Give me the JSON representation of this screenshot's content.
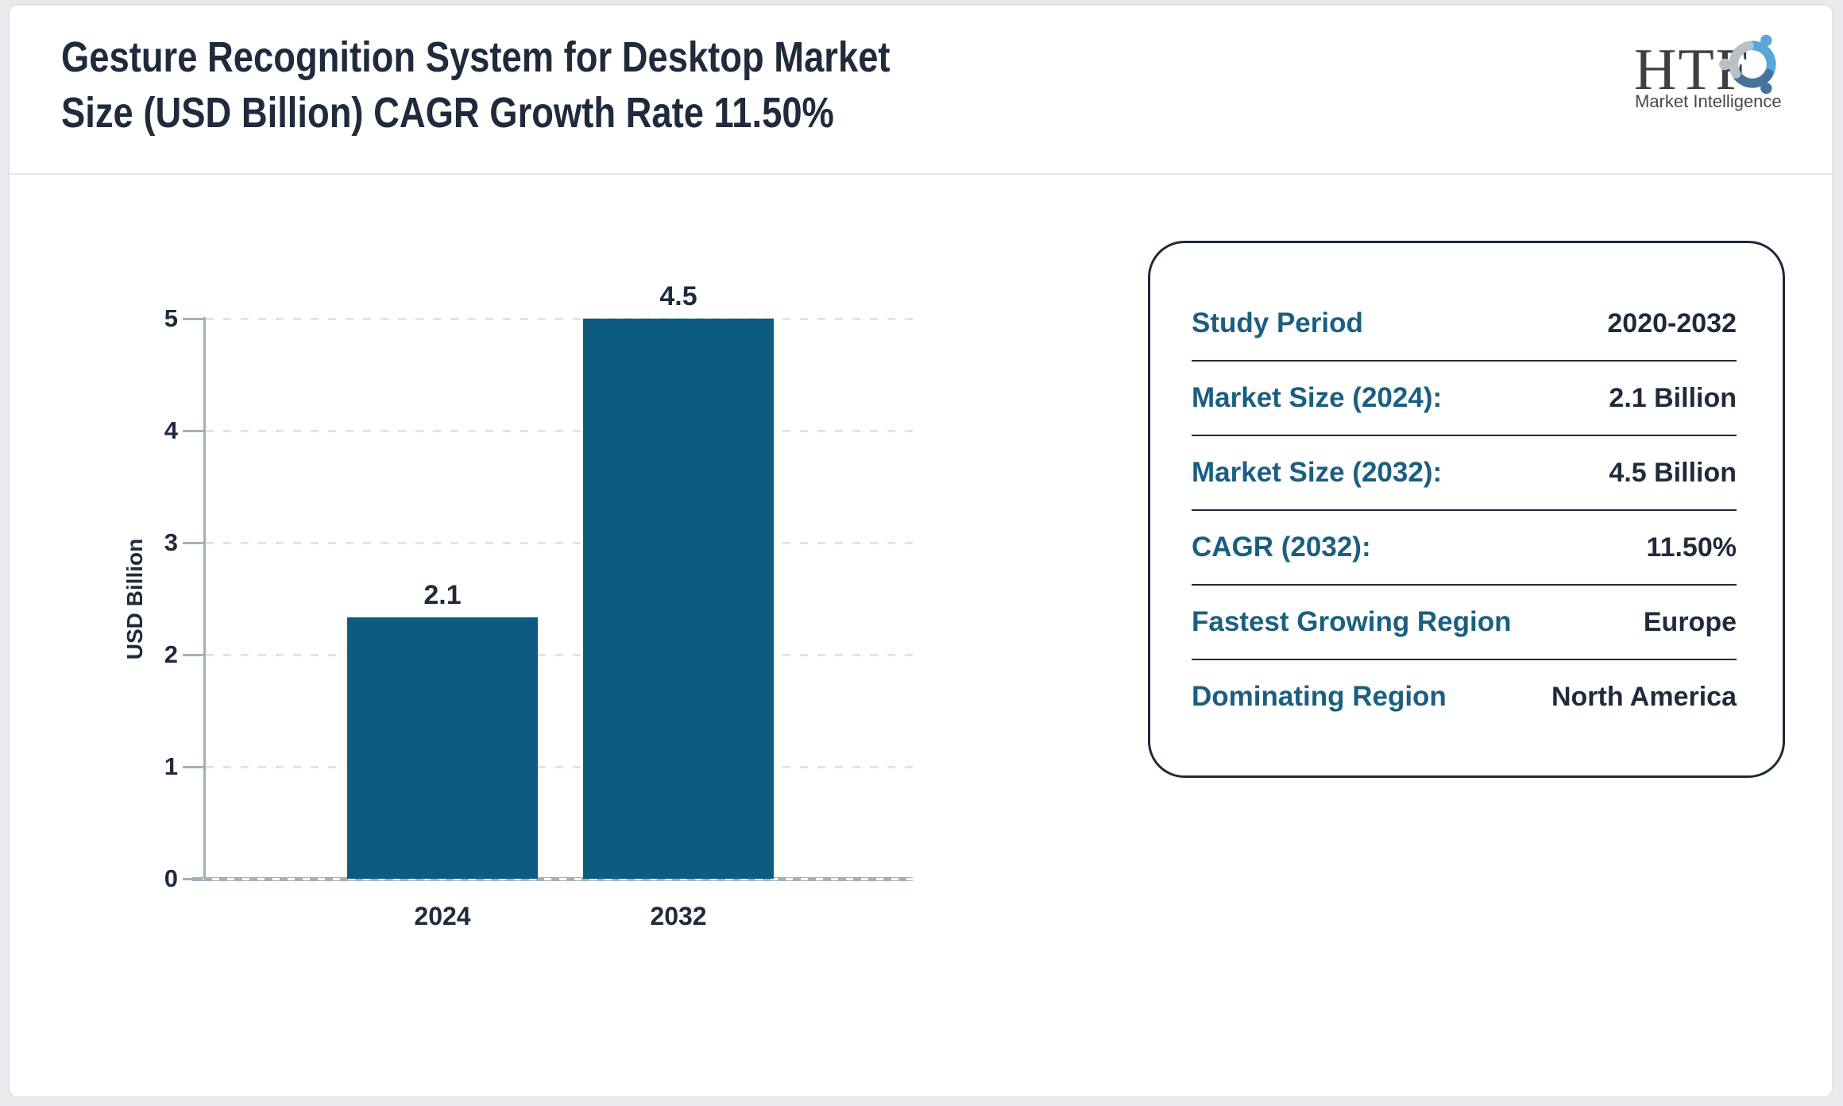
{
  "header": {
    "title_line1": "Gesture Recognition System for Desktop Market",
    "title_line2": "Size (USD Billion) CAGR Growth Rate 11.50%",
    "logo": {
      "text": "HTF",
      "subtext": "Market Intelligence",
      "icon": "three-figures-swirl-icon",
      "colors": {
        "figure_light_blue": "#58a7d8",
        "figure_steel_blue": "#44749d",
        "figure_pale_gray": "#b6c1ca"
      }
    }
  },
  "chart_data": {
    "type": "bar",
    "title": "Gesture Recognition System for Desktop Market Size (USD Billion) CAGR Growth Rate 11.50%",
    "categories": [
      "2024",
      "2032"
    ],
    "values": [
      2.1,
      4.5
    ],
    "value_labels": [
      "2.1",
      "4.5"
    ],
    "xlabel": "",
    "ylabel": "USD Billion",
    "ylim": [
      0,
      5
    ],
    "yticks": [
      0,
      1,
      2,
      3,
      4,
      5
    ],
    "grid": "horizontal-dashed",
    "legend": "none",
    "bar_color": "#0d5c80",
    "bar_display": "bars_scaled_so_max_value_reaches_axis_top"
  },
  "info_panel": {
    "label_color": "#1a5f80",
    "value_color": "#1f2b3c",
    "rows": [
      {
        "label": "Study Period",
        "value": "2020-2032"
      },
      {
        "label": "Market Size (2024):",
        "value": "2.1 Billion"
      },
      {
        "label": "Market Size (2032):",
        "value": "4.5 Billion"
      },
      {
        "label": "CAGR (2032):",
        "value": "11.50%"
      },
      {
        "label": "Fastest Growing Region",
        "value": "Europe"
      },
      {
        "label": "Dominating Region",
        "value": "North America"
      }
    ]
  }
}
